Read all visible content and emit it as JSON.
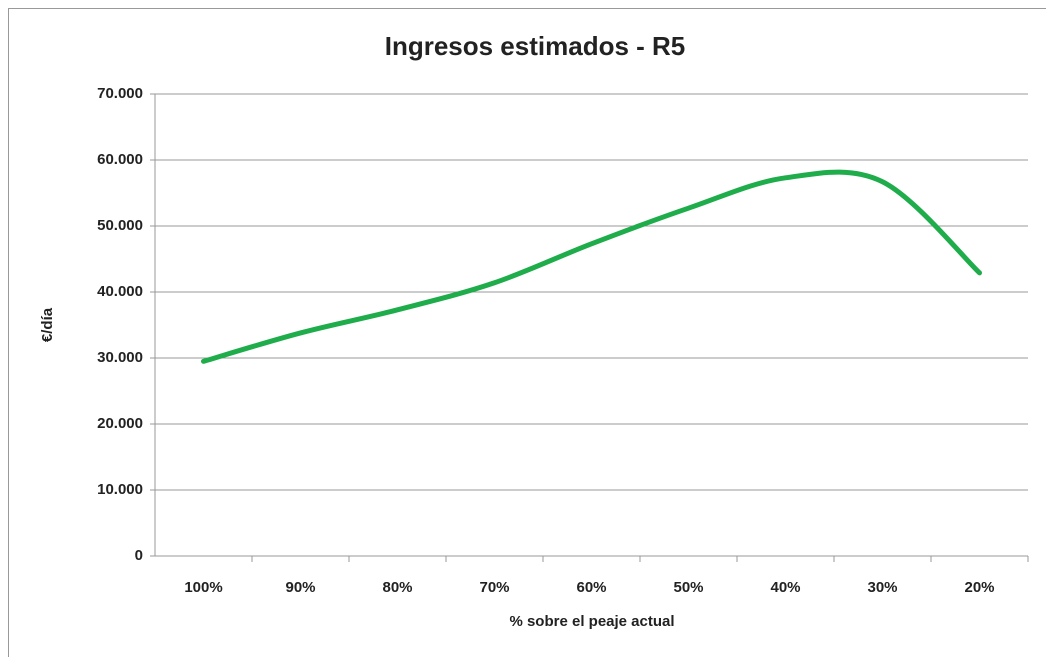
{
  "chart_data": {
    "type": "line",
    "title": "Ingresos estimados - R5",
    "x_label": "% sobre el peaje actual",
    "y_label": "€/día",
    "categories": [
      "100%",
      "90%",
      "80%",
      "70%",
      "60%",
      "50%",
      "40%",
      "30%",
      "20%"
    ],
    "series": [
      {
        "name": "R5",
        "color": "#1fac4b",
        "values": [
          29500,
          33800,
          37300,
          41400,
          47300,
          52700,
          57300,
          56700,
          42900
        ]
      }
    ],
    "ylim": [
      0,
      70000
    ],
    "yticks": [
      0,
      {
        "value": 10000,
        "label": "10.000"
      },
      {
        "value": 20000,
        "label": "20.000"
      },
      {
        "value": 30000,
        "label": "30.000"
      },
      {
        "value": 40000,
        "label": "40.000"
      },
      {
        "value": 50000,
        "label": "50.000"
      },
      {
        "value": 60000,
        "label": "60.000"
      },
      {
        "value": 70000,
        "label": "70.000"
      }
    ],
    "grid": true,
    "smooth": true
  }
}
